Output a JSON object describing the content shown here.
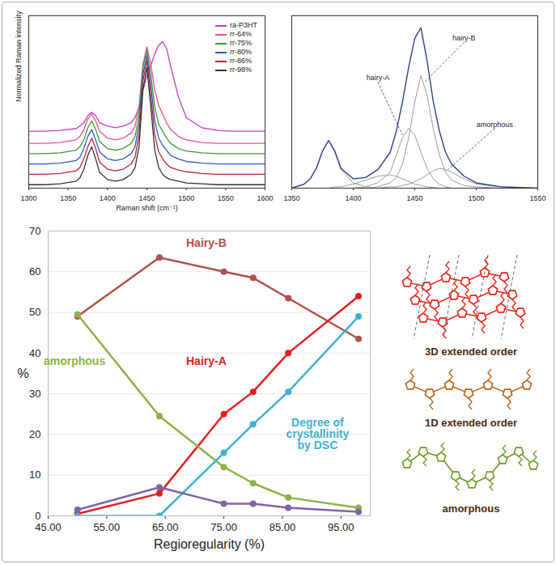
{
  "chart_data": [
    {
      "type": "line",
      "x_label": "Raman shift (cm⁻¹)",
      "y_label": "Normalized Raman intensity",
      "x": [
        1300,
        1320,
        1340,
        1360,
        1365,
        1370,
        1375,
        1380,
        1385,
        1390,
        1400,
        1410,
        1420,
        1430,
        1435,
        1440,
        1445,
        1450,
        1455,
        1460,
        1465,
        1470,
        1475,
        1480,
        1490,
        1500,
        1520,
        1540,
        1560,
        1580,
        1600
      ],
      "xlim": [
        1300,
        1600
      ],
      "xticks": [
        1300,
        1350,
        1400,
        1450,
        1500,
        1550,
        1600
      ],
      "ylim": [
        0,
        1
      ],
      "tick_labels": "x",
      "legend": "top-right",
      "series": [
        {
          "name": "ra-P3HT",
          "color": "#c03ccf",
          "values": [
            0.33,
            0.33,
            0.335,
            0.345,
            0.36,
            0.38,
            0.42,
            0.44,
            0.42,
            0.38,
            0.36,
            0.35,
            0.36,
            0.38,
            0.41,
            0.47,
            0.57,
            0.65,
            0.71,
            0.78,
            0.83,
            0.85,
            0.81,
            0.71,
            0.53,
            0.41,
            0.35,
            0.335,
            0.33,
            0.33,
            0.33
          ]
        },
        {
          "name": "rr-64%",
          "color": "#e8508c",
          "values": [
            0.26,
            0.26,
            0.265,
            0.28,
            0.3,
            0.34,
            0.4,
            0.43,
            0.39,
            0.33,
            0.29,
            0.28,
            0.29,
            0.32,
            0.36,
            0.47,
            0.72,
            0.82,
            0.72,
            0.57,
            0.48,
            0.43,
            0.38,
            0.34,
            0.3,
            0.28,
            0.265,
            0.26,
            0.26,
            0.26,
            0.26
          ]
        },
        {
          "name": "rr-75%",
          "color": "#3a9a3a",
          "values": [
            0.2,
            0.2,
            0.205,
            0.22,
            0.24,
            0.28,
            0.35,
            0.39,
            0.34,
            0.27,
            0.23,
            0.22,
            0.23,
            0.26,
            0.3,
            0.42,
            0.7,
            0.8,
            0.66,
            0.47,
            0.37,
            0.33,
            0.29,
            0.26,
            0.23,
            0.215,
            0.205,
            0.2,
            0.2,
            0.2,
            0.2
          ]
        },
        {
          "name": "rr-80%",
          "color": "#3456c8",
          "values": [
            0.14,
            0.14,
            0.145,
            0.16,
            0.18,
            0.23,
            0.3,
            0.34,
            0.28,
            0.21,
            0.17,
            0.16,
            0.17,
            0.2,
            0.24,
            0.37,
            0.66,
            0.77,
            0.6,
            0.39,
            0.29,
            0.25,
            0.22,
            0.19,
            0.17,
            0.155,
            0.145,
            0.14,
            0.14,
            0.14,
            0.14
          ]
        },
        {
          "name": "rr-86%",
          "color": "#b0283a",
          "values": [
            0.08,
            0.08,
            0.085,
            0.1,
            0.12,
            0.17,
            0.24,
            0.29,
            0.23,
            0.15,
            0.11,
            0.1,
            0.11,
            0.14,
            0.18,
            0.31,
            0.62,
            0.74,
            0.54,
            0.31,
            0.21,
            0.17,
            0.14,
            0.12,
            0.105,
            0.095,
            0.085,
            0.08,
            0.08,
            0.08,
            0.08
          ]
        },
        {
          "name": "rr-98%",
          "color": "#333333",
          "values": [
            0.02,
            0.02,
            0.025,
            0.04,
            0.06,
            0.11,
            0.19,
            0.24,
            0.17,
            0.09,
            0.05,
            0.04,
            0.05,
            0.08,
            0.12,
            0.24,
            0.57,
            0.7,
            0.47,
            0.22,
            0.12,
            0.08,
            0.06,
            0.05,
            0.04,
            0.03,
            0.025,
            0.02,
            0.02,
            0.02,
            0.02
          ]
        }
      ]
    },
    {
      "type": "line",
      "x": [
        1350,
        1360,
        1365,
        1370,
        1375,
        1380,
        1385,
        1390,
        1400,
        1410,
        1420,
        1430,
        1435,
        1440,
        1445,
        1450,
        1455,
        1460,
        1465,
        1470,
        1475,
        1480,
        1490,
        1500,
        1520,
        1550
      ],
      "xlim": [
        1350,
        1550
      ],
      "xticks": [
        1350,
        1400,
        1450,
        1500,
        1550
      ],
      "ylim": [
        0,
        1.3
      ],
      "tick_labels": "x",
      "series": [
        {
          "color": "#9a9a9a",
          "values": [
            0,
            0.03,
            0.07,
            0.15,
            0.28,
            0.36,
            0.27,
            0.14,
            0.04,
            0.01,
            0,
            0,
            0,
            0,
            0,
            0,
            0,
            0,
            0,
            0,
            0,
            0,
            0,
            0,
            0,
            0
          ]
        },
        {
          "color": "#9a9a9a",
          "values": [
            0,
            0,
            0,
            0,
            0,
            0,
            0.01,
            0.01,
            0.03,
            0.06,
            0.09,
            0.1,
            0.09,
            0.07,
            0.05,
            0.03,
            0.02,
            0.01,
            0.005,
            0,
            0,
            0,
            0,
            0,
            0,
            0
          ]
        },
        {
          "name": "hairy-A",
          "color": "#9a9a9a",
          "label_at": [
            1420,
            0.8
          ],
          "pointer_to": [
            1440,
            0.4
          ],
          "values": [
            0,
            0,
            0,
            0,
            0,
            0,
            0,
            0,
            0,
            0.01,
            0.04,
            0.12,
            0.25,
            0.38,
            0.45,
            0.4,
            0.27,
            0.15,
            0.07,
            0.03,
            0.01,
            0,
            0,
            0,
            0,
            0
          ]
        },
        {
          "name": "hairy-B",
          "color": "#9a9a9a",
          "label_at": [
            1490,
            1.1
          ],
          "pointer_to": [
            1458,
            0.8
          ],
          "values": [
            0,
            0,
            0,
            0,
            0,
            0,
            0,
            0,
            0,
            0,
            0.01,
            0.04,
            0.08,
            0.18,
            0.38,
            0.65,
            0.85,
            0.7,
            0.45,
            0.25,
            0.12,
            0.06,
            0.02,
            0.01,
            0,
            0
          ]
        },
        {
          "name": "amorphous",
          "color": "#9a9a9a",
          "label_at": [
            1515,
            0.45
          ],
          "pointer_to": [
            1477,
            0.14
          ],
          "values": [
            0,
            0,
            0,
            0,
            0,
            0,
            0,
            0,
            0,
            0,
            0,
            0.01,
            0.01,
            0.02,
            0.03,
            0.05,
            0.07,
            0.1,
            0.13,
            0.15,
            0.14,
            0.12,
            0.07,
            0.03,
            0.01,
            0
          ]
        },
        {
          "color": "#2f3f8f",
          "values": [
            0,
            0.03,
            0.07,
            0.15,
            0.28,
            0.36,
            0.28,
            0.15,
            0.07,
            0.08,
            0.14,
            0.27,
            0.43,
            0.65,
            0.91,
            1.13,
            1.21,
            0.96,
            0.655,
            0.43,
            0.27,
            0.18,
            0.09,
            0.04,
            0.01,
            0
          ]
        }
      ]
    },
    {
      "type": "line",
      "x_label": "Regioregularity (%)",
      "y_label": "%",
      "x": [
        50,
        64,
        75,
        80,
        86,
        98
      ],
      "xlim": [
        45,
        100
      ],
      "xticks": [
        {
          "value": 45,
          "label": "45.00"
        },
        {
          "value": 55,
          "label": "55.00"
        },
        {
          "value": 65,
          "label": "65.00"
        },
        {
          "value": 75,
          "label": "75.00"
        },
        {
          "value": 85,
          "label": "85.00"
        },
        {
          "value": 95,
          "label": "95.00"
        }
      ],
      "ylim": [
        0,
        70
      ],
      "yticks": [
        0,
        10,
        20,
        30,
        40,
        50,
        60,
        70
      ],
      "grid": true,
      "marker": "circle",
      "series": [
        {
          "name": "Hairy-B",
          "color": "#b0504a",
          "label_at": [
            72,
            67
          ],
          "values": [
            49,
            63.5,
            60,
            58.5,
            53.5,
            43.5
          ]
        },
        {
          "name": "Hairy-A",
          "color": "#e02020",
          "label_at": [
            72,
            38
          ],
          "values": [
            0.5,
            5.5,
            25,
            30.5,
            40,
            54
          ]
        },
        {
          "name": "amorphous",
          "color": "#8fb04a",
          "label_at": [
            49.5,
            38
          ],
          "values": [
            49.5,
            24.5,
            12,
            8,
            4.5,
            2
          ]
        },
        {
          "name": "Degree of crystallinity by DSC",
          "color": "#3fb0d0",
          "label_at": [
            91,
            20
          ],
          "values": [
            0,
            0,
            15.5,
            22.5,
            30.5,
            49
          ]
        },
        {
          "color": "#8064a2",
          "values": [
            1.5,
            7,
            3,
            3,
            2,
            1
          ]
        }
      ]
    }
  ],
  "schematic": [
    {
      "label": "3D extended order",
      "color": "#e8231c"
    },
    {
      "label": "1D extended order",
      "color": "#b5651d"
    },
    {
      "label": "amorphous",
      "color": "#6e9a2a"
    }
  ]
}
